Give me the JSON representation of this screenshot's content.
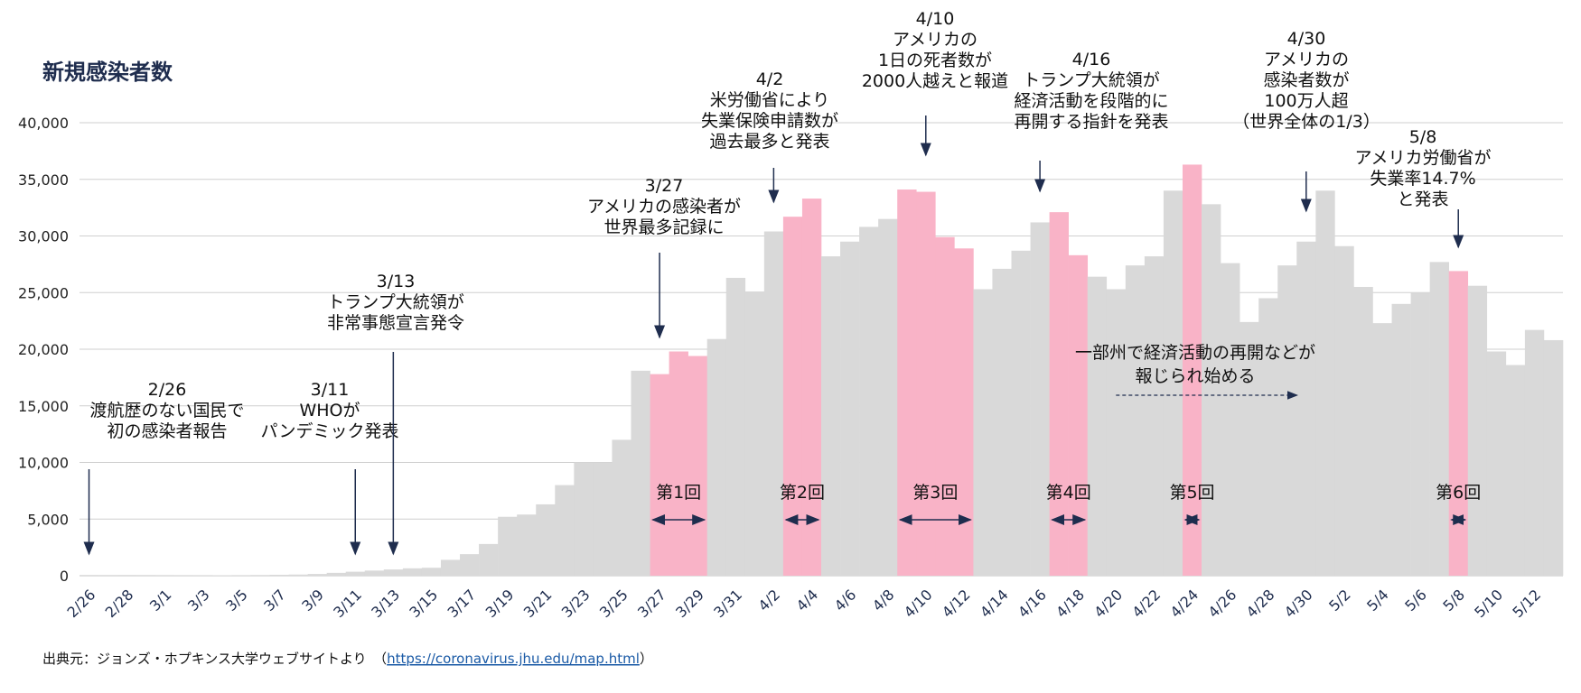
{
  "chart_data": {
    "type": "bar",
    "title": "新規感染者数",
    "ylim": [
      0,
      40000
    ],
    "yticks": [
      "0",
      "5,000",
      "10,000",
      "15,000",
      "20,000",
      "25,000",
      "30,000",
      "35,000",
      "40,000"
    ],
    "grid": true,
    "categories": [
      "2/26",
      "2/27",
      "2/28",
      "2/29",
      "3/1",
      "3/2",
      "3/3",
      "3/4",
      "3/5",
      "3/6",
      "3/7",
      "3/8",
      "3/9",
      "3/10",
      "3/11",
      "3/12",
      "3/13",
      "3/14",
      "3/15",
      "3/16",
      "3/17",
      "3/18",
      "3/19",
      "3/20",
      "3/21",
      "3/22",
      "3/23",
      "3/24",
      "3/25",
      "3/26",
      "3/27",
      "3/28",
      "3/29",
      "3/30",
      "3/31",
      "4/1",
      "4/2",
      "4/3",
      "4/4",
      "4/5",
      "4/6",
      "4/7",
      "4/8",
      "4/9",
      "4/10",
      "4/11",
      "4/12",
      "4/13",
      "4/14",
      "4/15",
      "4/16",
      "4/17",
      "4/18",
      "4/19",
      "4/20",
      "4/21",
      "4/22",
      "4/23",
      "4/24",
      "4/25",
      "4/26",
      "4/27",
      "4/28",
      "4/29",
      "4/30",
      "5/1",
      "5/2",
      "5/3",
      "5/4",
      "5/5",
      "5/6",
      "5/7",
      "5/8",
      "5/9",
      "5/10",
      "5/11",
      "5/12",
      "5/13"
    ],
    "xticklabels": [
      "2/26",
      "2/28",
      "3/1",
      "3/3",
      "3/5",
      "3/7",
      "3/9",
      "3/11",
      "3/13",
      "3/15",
      "3/17",
      "3/19",
      "3/21",
      "3/23",
      "3/25",
      "3/27",
      "3/29",
      "3/31",
      "4/2",
      "4/4",
      "4/6",
      "4/8",
      "4/10",
      "4/12",
      "4/14",
      "4/16",
      "4/18",
      "4/20",
      "4/22",
      "4/24",
      "4/26",
      "4/28",
      "4/30",
      "5/2",
      "5/4",
      "5/6",
      "5/8",
      "5/10",
      "5/12"
    ],
    "values": [
      5,
      10,
      5,
      10,
      15,
      20,
      30,
      40,
      50,
      60,
      80,
      100,
      150,
      250,
      350,
      450,
      550,
      650,
      700,
      1400,
      1900,
      2800,
      5200,
      5400,
      6300,
      8000,
      10000,
      10000,
      12000,
      18100,
      17800,
      19800,
      19400,
      20900,
      26300,
      25100,
      30400,
      31700,
      33300,
      28200,
      29500,
      30800,
      31500,
      34100,
      33900,
      29900,
      28900,
      25300,
      27100,
      28700,
      31200,
      32100,
      28300,
      26400,
      25300,
      27400,
      28200,
      34000,
      36300,
      32800,
      27600,
      22400,
      24500,
      27400,
      29500,
      34000,
      29100,
      25500,
      22300,
      24000,
      25000,
      27700,
      26900,
      25600,
      19800,
      18600,
      21700,
      20800
    ],
    "highlight_color": "#f9b3c7",
    "base_color": "#d9d9d9",
    "highlight_ranges": [
      {
        "label": "第1回",
        "start": "3/27",
        "end": "3/29"
      },
      {
        "label": "第2回",
        "start": "4/3",
        "end": "4/4"
      },
      {
        "label": "第3回",
        "start": "4/9",
        "end": "4/12"
      },
      {
        "label": "第4回",
        "start": "4/17",
        "end": "4/18"
      },
      {
        "label": "第5回",
        "start": "4/24",
        "end": "4/24"
      },
      {
        "label": "第6回",
        "start": "5/8",
        "end": "5/8"
      }
    ],
    "annotations": [
      {
        "date": "2/26",
        "lines": [
          "2/26",
          "渡航歴のない国民で",
          "初の感染者報告"
        ]
      },
      {
        "date": "3/11",
        "lines": [
          "3/11",
          "WHOが",
          "パンデミック発表"
        ]
      },
      {
        "date": "3/13",
        "lines": [
          "3/13",
          "トランプ大統領が",
          "非常事態宣言発令"
        ]
      },
      {
        "date": "3/27",
        "lines": [
          "3/27",
          "アメリカの感染者が",
          "世界最多記録に"
        ]
      },
      {
        "date": "4/2",
        "lines": [
          "4/2",
          "米労働省により",
          "失業保険申請数が",
          "過去最多と発表"
        ]
      },
      {
        "date": "4/10",
        "lines": [
          "4/10",
          "アメリカの",
          "1日の死者数が",
          "2000人越えと報道"
        ]
      },
      {
        "date": "4/16",
        "lines": [
          "4/16",
          "トランプ大統領が",
          "経済活動を段階的に",
          "再開する指針を発表"
        ]
      },
      {
        "date": "4/30",
        "lines": [
          "4/30",
          "アメリカの",
          "感染者数が",
          "100万人超",
          "（世界全体の1/3）"
        ]
      },
      {
        "date": "5/8",
        "lines": [
          "5/8",
          "アメリカ労働省が",
          "失業率14.7%",
          "と発表"
        ]
      }
    ],
    "reopening_note": [
      "一部州で経済活動の再開などが",
      "報じられ始める"
    ]
  },
  "source": {
    "prefix": "出典元：ジョンズ・ホプキンス大学ウェブサイトより　（",
    "url": "https://coronavirus.jhu.edu/map.html",
    "suffix": "）"
  }
}
